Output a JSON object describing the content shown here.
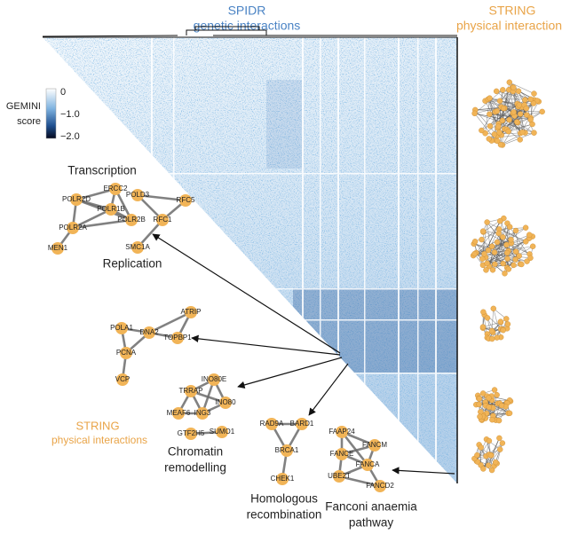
{
  "header": {
    "spidr_title": "SPIDR",
    "spidr_subtitle": "genetic interactions",
    "string_title": "STRING",
    "string_subtitle": "physical interactions"
  },
  "colorbar": {
    "title": [
      "GEMINI",
      "score"
    ],
    "ticks": [
      "0",
      "−1.0",
      "−2.0"
    ]
  },
  "legend": {
    "title": "STRING",
    "subtitle": "physical interactions"
  },
  "modules": [
    {
      "label": [
        "Transcription"
      ],
      "nodes": [
        "ERCC2",
        "POLR2D",
        "POLR1B",
        "POLR2B",
        "POLR2A",
        "MEN1"
      ]
    },
    {
      "label": [
        "Replication"
      ],
      "nodes": [
        "POLD3",
        "RFC5",
        "RFC1",
        "SMC1A"
      ]
    },
    {
      "label": [],
      "nodes": [
        "ATRIP",
        "POLA1",
        "DNA2",
        "TOPBP1",
        "PCNA",
        "VCP"
      ]
    },
    {
      "label": [
        "Chromatin",
        "remodelling"
      ],
      "nodes": [
        "INO80E",
        "TRRAP",
        "INO80",
        "MEAF6",
        "ING3",
        "GTF2H5",
        "SUMO1"
      ]
    },
    {
      "label": [
        "Homologous",
        "recombination"
      ],
      "nodes": [
        "RAD9A",
        "BARD1",
        "BRCA1",
        "CHEK1"
      ]
    },
    {
      "label": [
        "Fanconi anaemia",
        "pathway"
      ],
      "nodes": [
        "FAAP24",
        "FANCE",
        "FANCM",
        "FANCA",
        "UBE2T",
        "FANCD2"
      ]
    }
  ]
}
